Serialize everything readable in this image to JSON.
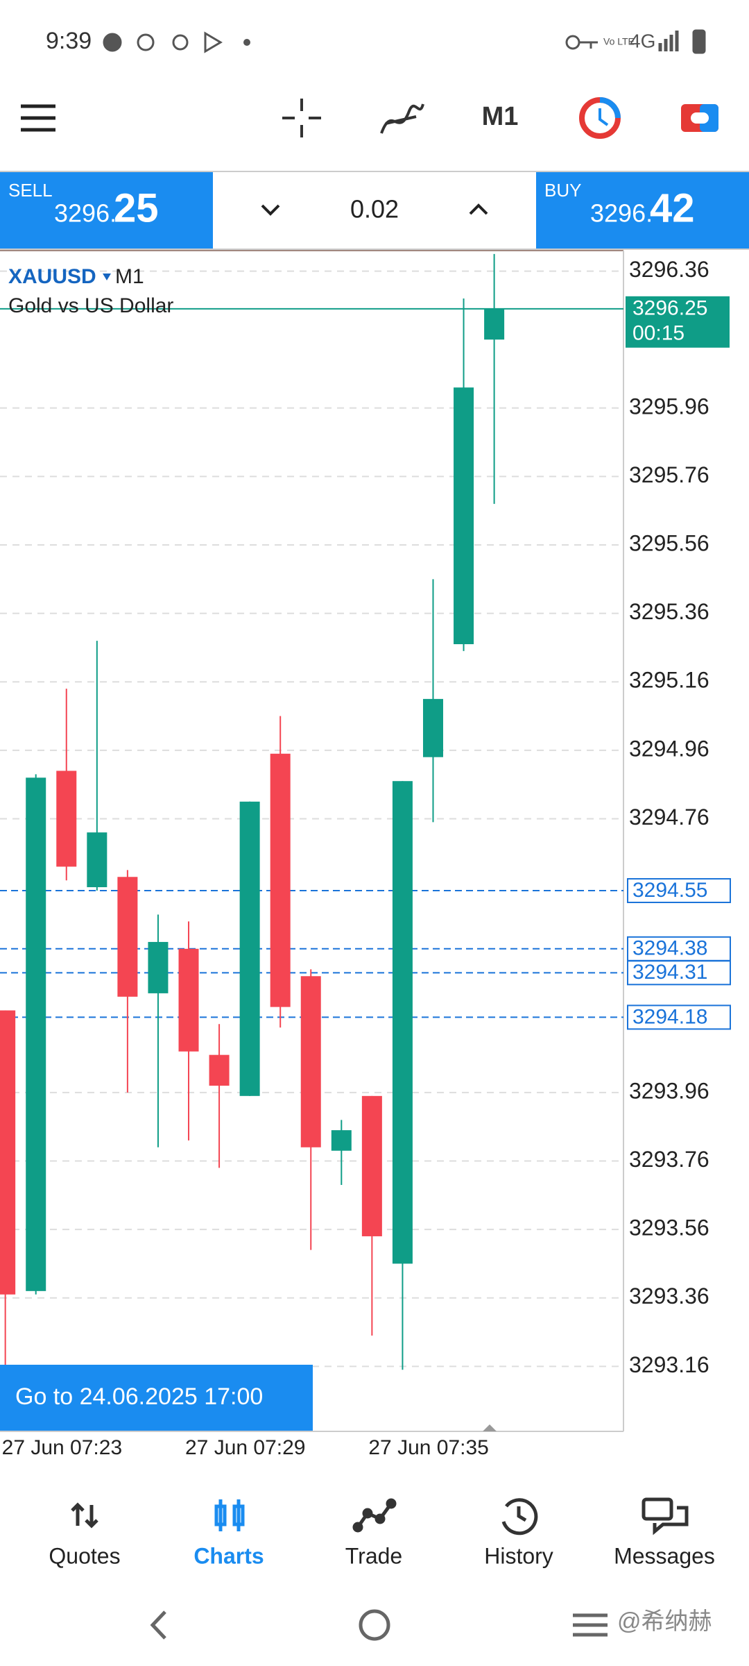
{
  "status_bar": {
    "time": "9:39",
    "network": "4G"
  },
  "toolbar": {
    "timeframe": "M1"
  },
  "trade_panel": {
    "sell": {
      "label": "SELL",
      "price_main": "3296.",
      "price_big": "25"
    },
    "lot": "0.02",
    "buy": {
      "label": "BUY",
      "price_main": "3296.",
      "price_big": "42"
    }
  },
  "chart_data": {
    "type": "candlestick",
    "symbol": "XAUUSD",
    "timeframe": "M1",
    "description": "Gold vs US Dollar",
    "categories": [
      "27 Jun 07:23",
      null,
      null,
      null,
      null,
      null,
      "27 Jun 07:29",
      null,
      null,
      null,
      null,
      null,
      "27 Jun 07:35",
      null,
      null,
      null,
      null
    ],
    "open": [
      3294.2,
      3293.38,
      3294.9,
      3294.56,
      3294.59,
      3294.25,
      3294.38,
      3294.07,
      3293.95,
      3294.95,
      3294.3,
      3293.79,
      3293.95,
      3293.46,
      3294.94,
      3295.27,
      3296.16
    ],
    "high": [
      3294.2,
      3294.89,
      3295.14,
      3295.28,
      3294.61,
      3294.48,
      3294.46,
      3294.16,
      3294.81,
      3295.06,
      3294.32,
      3293.88,
      3293.95,
      3294.87,
      3295.46,
      3296.28,
      3296.41
    ],
    "low": [
      3293.16,
      3293.37,
      3294.58,
      3294.55,
      3293.96,
      3293.8,
      3293.82,
      3293.74,
      3293.95,
      3294.15,
      3293.5,
      3293.69,
      3293.25,
      3293.15,
      3294.75,
      3295.25,
      3295.68
    ],
    "close": [
      3293.37,
      3294.88,
      3294.62,
      3294.72,
      3294.24,
      3294.4,
      3294.08,
      3293.98,
      3294.81,
      3294.21,
      3293.8,
      3293.85,
      3293.54,
      3294.87,
      3295.11,
      3296.02,
      3296.25
    ],
    "up_color": "#0f9d87",
    "down_color": "#f44552",
    "ylim": [
      3292.97,
      3296.42
    ],
    "yticks": [
      3296.36,
      3295.96,
      3295.76,
      3295.56,
      3295.36,
      3295.16,
      3294.96,
      3294.76,
      3293.96,
      3293.76,
      3293.56,
      3293.36,
      3293.16
    ],
    "grid": true,
    "current_price": 3296.25,
    "timer": "00:15",
    "order_lines": [
      3294.55,
      3294.38,
      3294.31,
      3294.18
    ],
    "order_color": "#1a73d9"
  },
  "go_to_button": "Go to 24.06.2025 17:00",
  "nav": [
    {
      "label": "Quotes",
      "color": "#222222"
    },
    {
      "label": "Charts",
      "color": "#1a8cf0"
    },
    {
      "label": "Trade",
      "color": "#222222"
    },
    {
      "label": "History",
      "color": "#222222"
    },
    {
      "label": "Messages",
      "color": "#222222"
    }
  ],
  "watermark": "@希纳赫"
}
